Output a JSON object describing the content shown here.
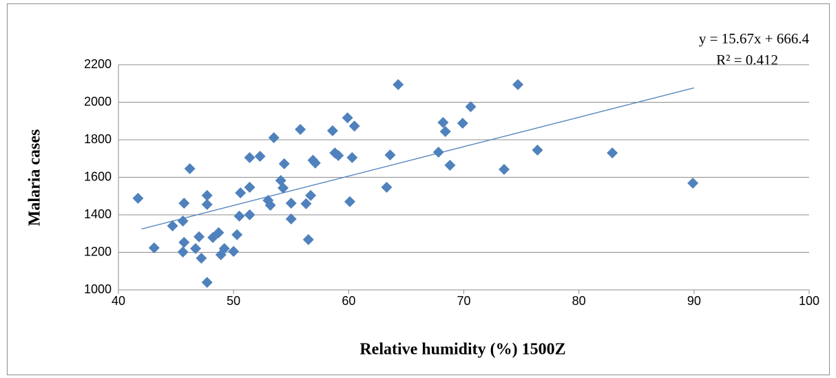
{
  "chart_data": {
    "type": "scatter",
    "x_label": "Relative humidity (%) 1500Z",
    "y_label": "Malaria cases",
    "xlim": [
      40,
      100
    ],
    "xticks": [
      40,
      50,
      60,
      70,
      80,
      90,
      100
    ],
    "ylim": [
      1000,
      2200
    ],
    "yticks": [
      1000,
      1200,
      1400,
      1600,
      1800,
      2000,
      2200
    ],
    "grid": true,
    "series": [
      {
        "name": "Malaria cases",
        "color": "#4f81bd",
        "x": [
          41.7,
          43.1,
          44.7,
          45.6,
          45.6,
          45.7,
          45.7,
          46.2,
          47.7,
          47.7,
          47.7,
          46.7,
          47.0,
          47.2,
          48.2,
          48.7,
          48.9,
          49.2,
          50.0,
          50.3,
          50.5,
          50.6,
          51.4,
          51.4,
          51.4,
          52.3,
          53.5,
          53.0,
          53.2,
          54.1,
          54.3,
          54.4,
          55.0,
          55.0,
          55.8,
          56.3,
          56.5,
          56.7,
          56.9,
          57.1,
          58.6,
          58.8,
          59.1,
          59.9,
          60.3,
          60.5,
          60.1,
          63.3,
          63.6,
          64.3,
          67.8,
          68.2,
          68.4,
          68.8,
          69.9,
          70.6,
          73.5,
          74.7,
          76.4,
          82.9,
          89.9
        ],
        "values": [
          1488,
          1224,
          1341,
          1367,
          1202,
          1253,
          1462,
          1646,
          1503,
          1455,
          1040,
          1220,
          1283,
          1169,
          1279,
          1305,
          1187,
          1220,
          1205,
          1294,
          1393,
          1517,
          1400,
          1547,
          1705,
          1712,
          1811,
          1477,
          1451,
          1583,
          1543,
          1672,
          1462,
          1378,
          1855,
          1459,
          1268,
          1503,
          1691,
          1676,
          1848,
          1730,
          1716,
          1917,
          1705,
          1873,
          1470,
          1547,
          1719,
          2094,
          1734,
          1892,
          1844,
          1664,
          1888,
          1976,
          1642,
          2094,
          1745,
          1730,
          1569
        ]
      }
    ],
    "trendline": {
      "equation": "y = 15.67x + 666.4",
      "r2": "R² = 0.412",
      "color": "#4f81bd",
      "x": [
        42,
        90
      ],
      "values": [
        1324.5,
        2076.7
      ]
    }
  }
}
